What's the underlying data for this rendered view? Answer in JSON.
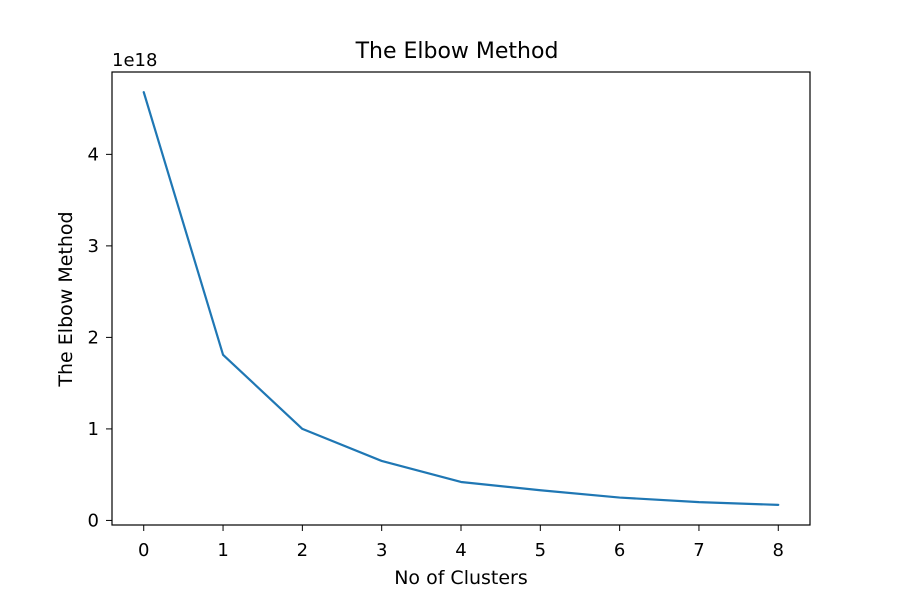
{
  "chart_data": {
    "type": "line",
    "title": "The Elbow Method",
    "xlabel": "No of Clusters",
    "ylabel": "The Elbow Method",
    "offset_text": "1e18",
    "x": [
      0,
      1,
      2,
      3,
      4,
      5,
      6,
      7,
      8
    ],
    "series": [
      {
        "values": [
          4.68,
          1.81,
          1.0,
          0.65,
          0.42,
          0.33,
          0.25,
          0.2,
          0.17
        ]
      }
    ],
    "xlim": [
      -0.4,
      8.4
    ],
    "ylim": [
      -0.05,
      4.9
    ],
    "xticks": [
      {
        "value": 0,
        "label": "0"
      },
      {
        "value": 1,
        "label": "1"
      },
      {
        "value": 2,
        "label": "2"
      },
      {
        "value": 3,
        "label": "3"
      },
      {
        "value": 4,
        "label": "4"
      },
      {
        "value": 5,
        "label": "5"
      },
      {
        "value": 6,
        "label": "6"
      },
      {
        "value": 7,
        "label": "7"
      },
      {
        "value": 8,
        "label": "8"
      }
    ],
    "yticks": [
      {
        "value": 0,
        "label": "0"
      },
      {
        "value": 1,
        "label": "1"
      },
      {
        "value": 2,
        "label": "2"
      },
      {
        "value": 3,
        "label": "3"
      },
      {
        "value": 4,
        "label": "4"
      }
    ],
    "grid": false,
    "legend": "none",
    "colors": {
      "line": "#1f77b4",
      "axes": "#000000"
    }
  }
}
